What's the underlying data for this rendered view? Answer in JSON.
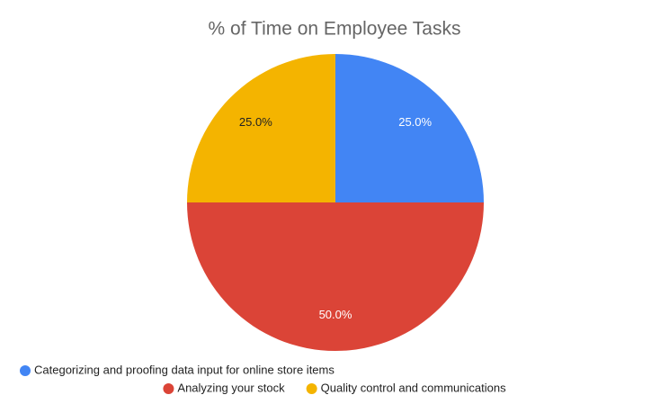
{
  "chart_data": {
    "type": "pie",
    "title": "% of Time on Employee Tasks",
    "categories": [
      "Categorizing and proofing data input for online store items",
      "Analyzing your stock",
      "Quality control and communications"
    ],
    "values": [
      25,
      50,
      25
    ],
    "value_labels": [
      "25.0%",
      "50.0%",
      "25.0%"
    ],
    "colors": [
      "#4285f4",
      "#db4437",
      "#f4b400"
    ]
  }
}
